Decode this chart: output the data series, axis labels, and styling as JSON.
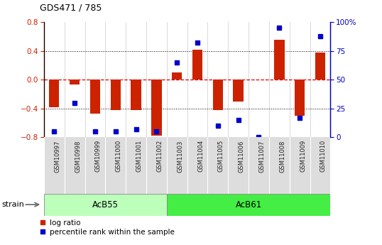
{
  "title": "GDS471 / 785",
  "samples": [
    "GSM10997",
    "GSM10998",
    "GSM10999",
    "GSM11000",
    "GSM11001",
    "GSM11002",
    "GSM11003",
    "GSM11004",
    "GSM11005",
    "GSM11006",
    "GSM11007",
    "GSM11008",
    "GSM11009",
    "GSM11010"
  ],
  "log_ratio": [
    -0.38,
    -0.07,
    -0.47,
    -0.42,
    -0.42,
    -0.78,
    0.1,
    0.42,
    -0.42,
    -0.3,
    0.0,
    0.55,
    -0.5,
    0.38
  ],
  "percentile_rank": [
    5,
    30,
    5,
    5,
    7,
    5,
    65,
    82,
    10,
    15,
    0,
    95,
    17,
    88
  ],
  "groups": [
    {
      "label": "AcB55",
      "start": 0,
      "end": 5,
      "color": "#bbffbb"
    },
    {
      "label": "AcB61",
      "start": 6,
      "end": 13,
      "color": "#44ee44"
    }
  ],
  "strain_label": "strain",
  "ylim_left": [
    -0.8,
    0.8
  ],
  "yticks_left": [
    -0.8,
    -0.4,
    0.0,
    0.4,
    0.8
  ],
  "yticks_right": [
    0,
    25,
    50,
    75,
    100
  ],
  "ytick_labels_right": [
    "0",
    "25",
    "50",
    "75",
    "100%"
  ],
  "bar_color": "#cc2200",
  "dot_color": "#0000cc",
  "zero_line_color": "#dd0000",
  "left_axis_color": "#cc2200",
  "right_axis_color": "#0000cc",
  "bar_width": 0.5,
  "legend_items": [
    "log ratio",
    "percentile rank within the sample"
  ]
}
